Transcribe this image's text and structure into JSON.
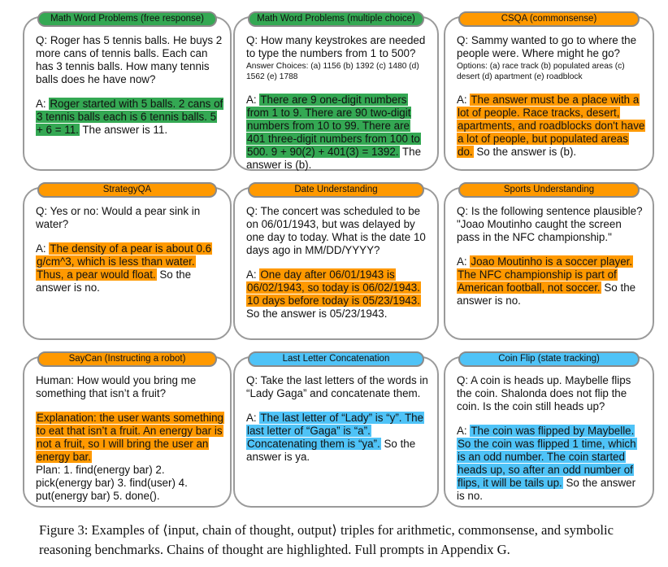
{
  "colors": {
    "arithmetic": "#34a853",
    "commonsense": "#ff9900",
    "symbolic": "#4fc3f7"
  },
  "panels": [
    {
      "title": "Math Word Problems (free response)",
      "category": "arithmetic",
      "question": "Q: Roger has 5 tennis balls. He buys 2 more cans of tennis balls. Each can has 3 tennis balls. How many tennis balls does he have now?",
      "options": "",
      "answer_prefix": "A: ",
      "chain_of_thought": "Roger started with 5 balls. 2 cans of 3 tennis balls each is 6 tennis balls. 5 + 6 = 11.",
      "answer_suffix": " The answer is 11."
    },
    {
      "title": "Math Word Problems (multiple choice)",
      "category": "arithmetic",
      "question": "Q: How many keystrokes are needed to type the numbers from 1 to 500?",
      "options": "Answer Choices: (a) 1156 (b) 1392 (c) 1480 (d) 1562 (e) 1788",
      "answer_prefix": "A: ",
      "chain_of_thought": "There are 9 one-digit numbers from 1 to 9. There are 90 two-digit numbers from 10 to 99. There are 401 three-digit numbers from 100 to 500. 9 + 90(2) + 401(3) = 1392.",
      "answer_suffix": " The answer is (b)."
    },
    {
      "title": "CSQA (commonsense)",
      "category": "commonsense",
      "question": "Q: Sammy wanted to go to where the people were. Where might he go?",
      "options": "Options: (a) race track (b) populated areas (c) desert (d) apartment (e) roadblock",
      "answer_prefix": "A: ",
      "chain_of_thought": "The answer must be a place with a lot of people. Race tracks, desert, apartments, and roadblocks don't have a lot of people, but populated areas do.",
      "answer_suffix": " So the answer is (b)."
    },
    {
      "title": "StrategyQA",
      "category": "commonsense",
      "question": "Q: Yes or no: Would a pear sink in water?",
      "options": "",
      "answer_prefix": "A: ",
      "chain_of_thought": "The density of a pear is about 0.6 g/cm^3, which is less than water. Thus, a pear would float.",
      "answer_suffix": " So the answer is no."
    },
    {
      "title": "Date Understanding",
      "category": "commonsense",
      "question": "Q: The concert was scheduled to be on 06/01/1943, but was delayed by one day to today. What is the date 10 days ago in MM/DD/YYYY?",
      "options": "",
      "answer_prefix": "A: ",
      "chain_of_thought": "One day after 06/01/1943 is 06/02/1943, so today is 06/02/1943. 10 days before today is 05/23/1943.",
      "answer_suffix": " So the answer is 05/23/1943."
    },
    {
      "title": "Sports Understanding",
      "category": "commonsense",
      "question": "Q: Is the following sentence plausible? \"Joao Moutinho caught the screen pass in the NFC championship.\"",
      "options": "",
      "answer_prefix": "A: ",
      "chain_of_thought": "Joao Moutinho is a soccer player. The NFC championship is part of American football, not soccer.",
      "answer_suffix": " So the answer is no."
    },
    {
      "title": "SayCan (Instructing a robot)",
      "category": "commonsense",
      "question": "Human: How would you bring me something that isn’t a fruit?",
      "options": "",
      "answer_prefix": "",
      "chain_of_thought": "Explanation: the user wants something to eat that isn’t a fruit. An energy bar is not a fruit, so I will bring the user an energy bar.",
      "answer_suffix": "",
      "plan": "Plan: 1. find(energy bar) 2. pick(energy bar) 3. find(user) 4. put(energy bar) 5. done()."
    },
    {
      "title": "Last Letter Concatenation",
      "category": "symbolic",
      "question": "Q: Take the last letters of the words in “Lady Gaga” and concatenate them.",
      "options": "",
      "answer_prefix": "A: ",
      "chain_of_thought": "The last letter of “Lady” is “y”. The last letter of “Gaga” is “a”. Concatenating them is “ya”.",
      "answer_suffix": " So the answer is ya."
    },
    {
      "title": "Coin Flip (state tracking)",
      "category": "symbolic",
      "question": "Q: A coin is heads up. Maybelle flips the coin. Shalonda does not flip the coin. Is the coin still heads up?",
      "options": "",
      "answer_prefix": "A: ",
      "chain_of_thought": "The coin was flipped by Maybelle. So the coin was flipped 1 time, which is an odd number. The coin started heads up, so after an odd number of flips, it will be tails up.",
      "answer_suffix": " So the answer is no."
    }
  ],
  "caption": "Figure 3:  Examples of ⟨input, chain of thought, output⟩ triples for arithmetic, commonsense, and symbolic reasoning benchmarks. Chains of thought are highlighted. Full prompts in Appendix G."
}
